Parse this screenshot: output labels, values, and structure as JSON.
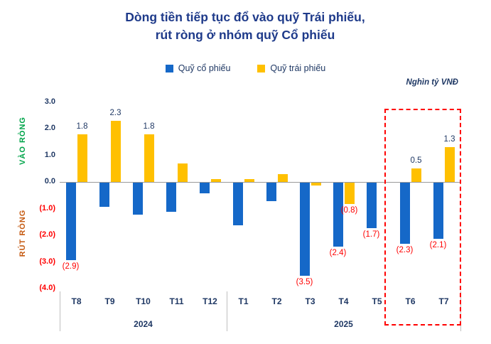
{
  "title": {
    "line1": "Dòng tiền tiếp tục đổ vào quỹ Trái phiếu,",
    "line2": "rút ròng ở nhóm quỹ Cổ phiếu"
  },
  "legend": [
    {
      "label": "Quỹ cổ phiếu",
      "color": "#1568C8"
    },
    {
      "label": "Quỹ trái phiếu",
      "color": "#FFC000"
    }
  ],
  "unit_label": "Nghìn tỷ VNĐ",
  "axis_side_labels": {
    "positive": "VÀO RÒNG",
    "negative": "RÚT RÒNG"
  },
  "colors": {
    "title": "#1e3a8a",
    "navy": "#1F3864",
    "red": "#FF0000",
    "green": "#00A44A",
    "orange": "#C55A11",
    "blue_bar": "#1568C8",
    "yellow_bar": "#FFC000",
    "separator": "#BFBFBF"
  },
  "chart_data": {
    "type": "bar",
    "title": "Dòng tiền tiếp tục đổ vào quỹ Trái phiếu, rút ròng ở nhóm quỹ Cổ phiếu",
    "unit": "Nghìn tỷ VNĐ",
    "categories": [
      "T8",
      "T9",
      "T10",
      "T11",
      "T12",
      "T1",
      "T2",
      "T3",
      "T4",
      "T5",
      "T6",
      "T7"
    ],
    "year_groups": [
      {
        "label": "2024",
        "start": 0,
        "span": 5
      },
      {
        "label": "2025",
        "start": 5,
        "span": 7
      }
    ],
    "series": [
      {
        "name": "Quỹ cổ phiếu",
        "color": "#1568C8",
        "values": [
          -2.9,
          -0.9,
          -1.2,
          -1.1,
          -0.4,
          -1.6,
          -0.7,
          -3.5,
          -2.4,
          -1.7,
          -2.3,
          -2.1
        ],
        "labels": [
          "(2.9)",
          null,
          null,
          null,
          null,
          null,
          null,
          "(3.5)",
          "(2.4)",
          "(1.7)",
          "(2.3)",
          "(2.1)"
        ]
      },
      {
        "name": "Quỹ trái phiếu",
        "color": "#FFC000",
        "values": [
          1.8,
          2.3,
          1.8,
          0.7,
          0.1,
          0.1,
          0.3,
          -0.1,
          -0.8,
          0.0,
          0.5,
          1.3
        ],
        "labels": [
          "1.8",
          "2.3",
          "1.8",
          null,
          null,
          null,
          null,
          null,
          "(0.8)",
          null,
          "0.5",
          "1.3"
        ]
      }
    ],
    "ylim": [
      -4.0,
      3.0
    ],
    "yticks": [
      {
        "v": 3,
        "label": "3.0"
      },
      {
        "v": 2,
        "label": "2.0"
      },
      {
        "v": 1,
        "label": "1.0"
      },
      {
        "v": 0,
        "label": "0.0"
      },
      {
        "v": -1,
        "label": "(1.0)"
      },
      {
        "v": -2,
        "label": "(2.0)"
      },
      {
        "v": -3,
        "label": "(3.0)"
      },
      {
        "v": -4,
        "label": "(4.0)"
      }
    ],
    "grid": false,
    "legend_position": "top",
    "highlight": {
      "from": "T6",
      "to": "T7",
      "style": "red-dashed-box"
    }
  }
}
